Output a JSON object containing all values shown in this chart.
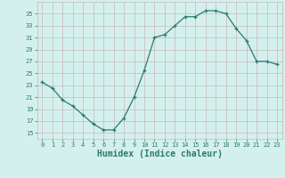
{
  "x": [
    0,
    1,
    2,
    3,
    4,
    5,
    6,
    7,
    8,
    9,
    10,
    11,
    12,
    13,
    14,
    15,
    16,
    17,
    18,
    19,
    20,
    21,
    22,
    23
  ],
  "y": [
    23.5,
    22.5,
    20.5,
    19.5,
    18.0,
    16.5,
    15.5,
    15.5,
    17.5,
    21.0,
    25.5,
    31.0,
    31.5,
    33.0,
    34.5,
    34.5,
    35.5,
    35.5,
    35.0,
    32.5,
    30.5,
    27.0,
    27.0,
    26.5
  ],
  "xlabel": "Humidex (Indice chaleur)",
  "xlim": [
    -0.5,
    23.5
  ],
  "ylim": [
    14,
    37
  ],
  "yticks": [
    15,
    17,
    19,
    21,
    23,
    25,
    27,
    29,
    31,
    33,
    35
  ],
  "xticks": [
    0,
    1,
    2,
    3,
    4,
    5,
    6,
    7,
    8,
    9,
    10,
    11,
    12,
    13,
    14,
    15,
    16,
    17,
    18,
    19,
    20,
    21,
    22,
    23
  ],
  "line_color": "#2d7a6e",
  "bg_color": "#d4f0ed",
  "grid_color": "#c8b8b8",
  "fig_bg_color": "#d4f0ed",
  "tick_color": "#2d7a6e",
  "xlabel_fontsize": 7,
  "tick_fontsize": 5,
  "marker": "+"
}
